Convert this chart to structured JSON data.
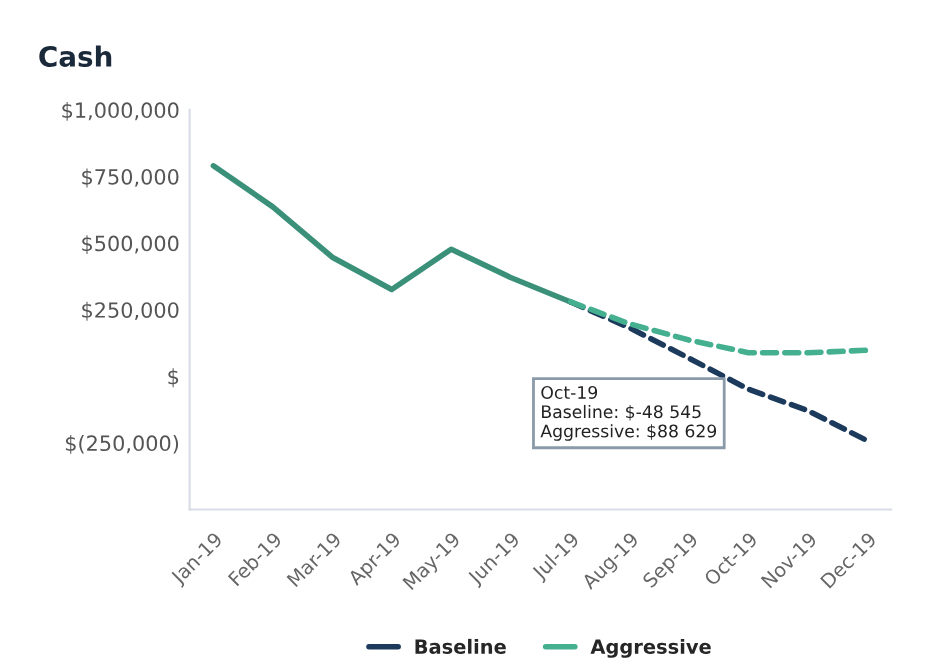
{
  "chart_data": {
    "type": "line",
    "title": "Cash",
    "categories": [
      "Jan-19",
      "Feb-19",
      "Mar-19",
      "Apr-19",
      "May-19",
      "Jun-19",
      "Jul-19",
      "Aug-19",
      "Sep-19",
      "Oct-19",
      "Nov-19",
      "Dec-19"
    ],
    "series": [
      {
        "color": "#3a9078",
        "line_style": "solid",
        "values": [
          790000,
          636000,
          447000,
          326000,
          477000,
          371000,
          280000,
          null,
          null,
          null,
          null,
          null
        ]
      },
      {
        "name": "Baseline",
        "color": "#1b3a5c",
        "line_style": "dashed",
        "values": [
          null,
          null,
          null,
          null,
          null,
          null,
          280000,
          182000,
          68000,
          -48545,
          -129000,
          -242000
        ]
      },
      {
        "name": "Aggressive",
        "color": "#45b08f",
        "line_style": "dashed",
        "values": [
          null,
          null,
          null,
          null,
          null,
          null,
          280000,
          197000,
          136000,
          88629,
          88000,
          98000
        ]
      }
    ],
    "ylim": [
      -500000,
      1000000
    ],
    "yticks": [
      {
        "value": -250000,
        "label": "$(250,000)"
      },
      {
        "value": 0,
        "label": "$"
      },
      {
        "value": 250000,
        "label": "$250,000"
      },
      {
        "value": 500000,
        "label": "$500,000"
      },
      {
        "value": 750000,
        "label": "$750,000"
      },
      {
        "value": 1000000,
        "label": "$1,000,000"
      }
    ],
    "grid": false,
    "legend": "bottom",
    "marker": "none",
    "annotations": [
      "Oct-19",
      "Baseline: $-48 545",
      "Aggressive: $88 629"
    ]
  }
}
